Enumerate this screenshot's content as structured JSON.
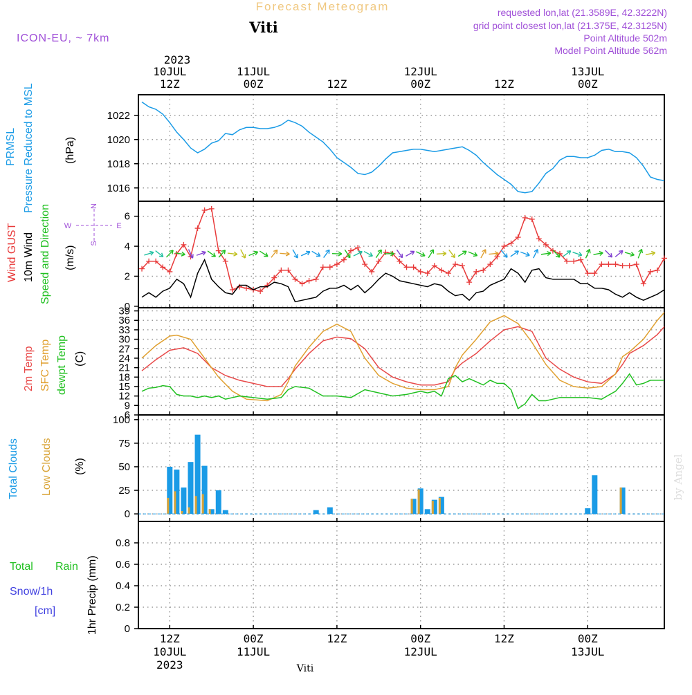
{
  "header": {
    "title": "Forecast Meteogram",
    "location": "Viti",
    "model": "ICON-EU, ~ 7km",
    "requested": "requested lon,lat (21.3589E, 42.3222N)",
    "grid_point": "grid point closest lon,lat (21.375E, 42.3125N)",
    "point_altitude": "Point Altitude 502m",
    "model_altitude": "Model Point Altitude 562m",
    "credit": "by Angel",
    "footer_location": "Viti"
  },
  "time_axis": {
    "top_year": "2023",
    "ticks": [
      {
        "hour": 12,
        "top": [
          "10JUL",
          "12Z"
        ],
        "bottom": [
          "12Z",
          "10JUL",
          "2023"
        ]
      },
      {
        "hour": 24,
        "top": [
          "11JUL",
          "00Z"
        ],
        "bottom": [
          "00Z",
          "11JUL"
        ]
      },
      {
        "hour": 36,
        "top": [
          "12Z"
        ],
        "bottom": [
          "12Z"
        ]
      },
      {
        "hour": 48,
        "top": [
          "12JUL",
          "00Z"
        ],
        "bottom": [
          "00Z",
          "12JUL"
        ]
      },
      {
        "hour": 60,
        "top": [
          "12Z"
        ],
        "bottom": [
          "12Z"
        ]
      },
      {
        "hour": 72,
        "top": [
          "13JUL",
          "00Z"
        ],
        "bottom": [
          "00Z",
          "13JUL"
        ]
      }
    ],
    "x_range_hours": [
      7.5,
      83
    ]
  },
  "panel_labels": {
    "prmsl": [
      "PRMSL",
      "Pressure Reduced to MSL",
      "(hPa)"
    ],
    "wind": [
      "Wind GUST",
      "10m Wind",
      "Speed and Direction",
      "(m/s)"
    ],
    "compass": {
      "n": "N",
      "s": "S",
      "w": "W",
      "e": "E"
    },
    "temp": [
      "2m Temp",
      "SFC Temp",
      "dewpt Temp",
      "(C)"
    ],
    "clouds": [
      "Total Clouds",
      "Low Clouds",
      "(%)"
    ],
    "precip": [
      "Total",
      "Rain",
      "Snow/1h",
      "[cm]",
      "1hr Precip (mm)"
    ]
  },
  "colors": {
    "pressure": "#1a9be6",
    "gust": "#e83a3a",
    "wind": "#000000",
    "t2m": "#e84848",
    "sfc": "#e0a030",
    "dewpt": "#20c020",
    "total_clouds": "#1a9be6",
    "low_clouds": "#d9a437",
    "label_purple": "#a050d8",
    "label_orange": "#f0c880",
    "rain_green": "#20c020",
    "snow_blue": "#4040e0"
  },
  "chart_data": [
    {
      "type": "line",
      "title": "PRMSL",
      "ylabel": "(hPa)",
      "ylim": [
        1014.9,
        1023.7
      ],
      "yticks": [
        1016,
        1018,
        1020,
        1022
      ],
      "series": [
        {
          "name": "PRMSL",
          "x": [
            8,
            8.5,
            9,
            10,
            11,
            12,
            13,
            14,
            15,
            16,
            17,
            18,
            19,
            20,
            21,
            22,
            23,
            24,
            25,
            26,
            27,
            28,
            29,
            30,
            31,
            32,
            33,
            34,
            35,
            36,
            37,
            38,
            39,
            40,
            41,
            42,
            43,
            44,
            45,
            46,
            47,
            48,
            49,
            50,
            51,
            52,
            53,
            54,
            55,
            56,
            57,
            58,
            59,
            60,
            61,
            62,
            63,
            64,
            65,
            66,
            67,
            68,
            69,
            70,
            71,
            72,
            73,
            74,
            75,
            76,
            77,
            78,
            79,
            80,
            81,
            82,
            83
          ],
          "y": [
            1023.1,
            1022.9,
            1022.7,
            1022.5,
            1022.1,
            1021.4,
            1020.6,
            1020.0,
            1019.3,
            1018.9,
            1019.2,
            1019.7,
            1019.9,
            1020.5,
            1020.4,
            1020.8,
            1021.0,
            1021.0,
            1020.9,
            1020.9,
            1021.0,
            1021.2,
            1021.6,
            1021.4,
            1021.1,
            1020.6,
            1020.2,
            1019.8,
            1019.2,
            1018.5,
            1018.1,
            1017.7,
            1017.2,
            1017.1,
            1017.3,
            1017.8,
            1018.4,
            1018.9,
            1019.0,
            1019.1,
            1019.2,
            1019.2,
            1019.1,
            1019.0,
            1019.1,
            1019.2,
            1019.3,
            1019.4,
            1019.1,
            1018.7,
            1018.1,
            1017.6,
            1017.1,
            1016.7,
            1016.3,
            1015.7,
            1015.6,
            1015.7,
            1016.4,
            1017.2,
            1017.6,
            1018.3,
            1018.6,
            1018.6,
            1018.5,
            1018.5,
            1018.7,
            1019.1,
            1019.2,
            1019.0,
            1019.0,
            1018.9,
            1018.5,
            1017.8,
            1016.9,
            1016.7,
            1016.6
          ]
        }
      ]
    },
    {
      "type": "line",
      "title": "Wind GUST / 10m Wind Speed and Direction",
      "ylabel": "(m/s)",
      "ylim": [
        -0.1,
        7.0
      ],
      "yticks": [
        0,
        2,
        4,
        6
      ],
      "series": [
        {
          "name": "Wind GUST",
          "x": [
            8,
            9,
            10,
            11,
            12,
            13,
            14,
            15,
            16,
            17,
            18,
            19,
            20,
            21,
            22,
            23,
            24,
            25,
            26,
            27,
            28,
            29,
            30,
            31,
            32,
            33,
            34,
            35,
            36,
            37,
            38,
            39,
            40,
            41,
            42,
            43,
            44,
            45,
            46,
            47,
            48,
            49,
            50,
            51,
            52,
            53,
            54,
            55,
            56,
            57,
            58,
            59,
            60,
            61,
            62,
            63,
            64,
            65,
            66,
            67,
            68,
            69,
            70,
            71,
            72,
            73,
            74,
            75,
            76,
            77,
            78,
            79,
            80,
            81,
            82,
            83
          ],
          "y": [
            2.5,
            3.0,
            3.0,
            2.6,
            2.3,
            3.5,
            4.1,
            3.3,
            5.2,
            6.4,
            6.5,
            3.7,
            3.0,
            1.1,
            1.3,
            1.2,
            1.1,
            1.0,
            1.4,
            1.9,
            2.4,
            2.4,
            1.8,
            1.5,
            1.7,
            1.8,
            2.6,
            2.6,
            2.8,
            3.1,
            3.7,
            3.9,
            2.8,
            2.3,
            3.0,
            3.6,
            3.5,
            3.0,
            2.6,
            2.6,
            2.3,
            2.2,
            2.7,
            2.4,
            2.2,
            2.8,
            2.7,
            1.6,
            2.3,
            2.4,
            2.8,
            3.3,
            4.0,
            4.2,
            4.6,
            5.9,
            5.8,
            4.5,
            4.1,
            3.7,
            3.5,
            3.0,
            3.0,
            3.1,
            2.2,
            2.2,
            2.8,
            2.8,
            2.8,
            2.7,
            2.7,
            2.8,
            1.5,
            2.3,
            2.4,
            3.2
          ]
        },
        {
          "name": "10m Wind",
          "x": [
            8,
            9,
            10,
            11,
            12,
            13,
            14,
            15,
            16,
            17,
            18,
            19,
            20,
            21,
            22,
            23,
            24,
            25,
            26,
            27,
            28,
            29,
            30,
            31,
            32,
            33,
            34,
            35,
            36,
            37,
            38,
            39,
            40,
            41,
            42,
            43,
            44,
            45,
            46,
            47,
            48,
            49,
            50,
            51,
            52,
            53,
            54,
            55,
            56,
            57,
            58,
            59,
            60,
            61,
            62,
            63,
            64,
            65,
            66,
            67,
            68,
            69,
            70,
            71,
            72,
            73,
            74,
            75,
            76,
            77,
            78,
            79,
            80,
            81,
            82,
            83
          ],
          "y": [
            0.6,
            0.9,
            0.6,
            1.0,
            1.2,
            1.8,
            1.5,
            0.6,
            2.2,
            3.1,
            1.8,
            1.3,
            0.9,
            0.8,
            1.4,
            1.4,
            1.1,
            1.3,
            1.3,
            1.6,
            1.5,
            1.3,
            0.3,
            0.4,
            0.5,
            0.6,
            1.0,
            1.2,
            1.2,
            1.4,
            1.1,
            1.4,
            0.9,
            1.3,
            1.8,
            2.2,
            2.0,
            1.7,
            1.6,
            1.5,
            1.4,
            1.3,
            1.5,
            1.4,
            1.0,
            0.7,
            0.8,
            0.4,
            0.9,
            1.0,
            1.4,
            1.6,
            1.8,
            2.5,
            2.2,
            1.6,
            2.4,
            2.5,
            1.9,
            1.8,
            1.8,
            1.8,
            1.8,
            1.5,
            1.5,
            1.2,
            1.2,
            1.1,
            0.8,
            0.6,
            0.9,
            0.6,
            0.4,
            0.6,
            0.8,
            1.1
          ]
        }
      ]
    },
    {
      "type": "line",
      "title": "2m Temp / SFC Temp / dewpt Temp",
      "ylabel": "(C)",
      "ylim": [
        6,
        40
      ],
      "yticks": [
        6,
        9,
        12,
        15,
        18,
        21,
        24,
        27,
        30,
        33,
        36,
        39
      ],
      "series": [
        {
          "name": "2m Temp",
          "x": [
            8,
            10,
            12,
            14,
            16,
            18,
            20,
            22,
            24,
            26,
            28,
            29,
            30,
            32,
            34,
            36,
            38,
            40,
            42,
            44,
            46,
            48,
            50,
            52,
            53,
            54,
            56,
            58,
            60,
            62,
            64,
            66,
            68,
            70,
            72,
            74,
            76,
            77,
            78,
            80,
            82,
            83
          ],
          "y": [
            20.0,
            23.5,
            26.5,
            27.3,
            25.5,
            21.0,
            18.5,
            17.0,
            16.0,
            15.0,
            15.0,
            17.5,
            20.5,
            25.5,
            29.5,
            30.7,
            30.2,
            27.0,
            21.0,
            18.0,
            16.5,
            15.5,
            15.5,
            16.5,
            20.5,
            22.5,
            25.5,
            29.5,
            33.0,
            34.0,
            32.5,
            24.0,
            20.5,
            18.0,
            16.5,
            16.0,
            19.0,
            22.0,
            25.5,
            28.0,
            31.5,
            34.0
          ]
        },
        {
          "name": "SFC Temp",
          "x": [
            8,
            10,
            12,
            13,
            15,
            17,
            19,
            21,
            23,
            26,
            28,
            29,
            30,
            32,
            34,
            36,
            38,
            40,
            42,
            44,
            46,
            48,
            50,
            52,
            53,
            54,
            56,
            58,
            60,
            62,
            64,
            66,
            68,
            70,
            72,
            74,
            76,
            77,
            78,
            80,
            82,
            83
          ],
          "y": [
            24.0,
            28.0,
            31.0,
            31.3,
            30.0,
            24.0,
            18.0,
            13.5,
            11.0,
            10.5,
            12.5,
            16.5,
            21.5,
            27.5,
            32.5,
            34.8,
            32.5,
            24.0,
            18.5,
            16.0,
            14.5,
            14.0,
            14.0,
            15.0,
            21.0,
            25.0,
            30.0,
            35.5,
            37.5,
            35.0,
            29.0,
            22.0,
            17.0,
            15.0,
            14.5,
            15.0,
            19.0,
            24.5,
            26.0,
            30.0,
            36.0,
            38.5
          ]
        },
        {
          "name": "dewpt Temp",
          "x": [
            8,
            9,
            10,
            11,
            12,
            13,
            14,
            15,
            16,
            17,
            18,
            19,
            20,
            22,
            24,
            26,
            28,
            29,
            30,
            32,
            34,
            36,
            38,
            40,
            42,
            44,
            46,
            48,
            49,
            50,
            51,
            52,
            53,
            54,
            55,
            56,
            57,
            58,
            59,
            60,
            61,
            62,
            63,
            64,
            65,
            66,
            67,
            68,
            70,
            72,
            74,
            76,
            77,
            78,
            79,
            80,
            81,
            82,
            83
          ],
          "y": [
            13.5,
            14.5,
            14.7,
            15.3,
            15.0,
            12.5,
            12.0,
            12.0,
            11.5,
            12.0,
            11.5,
            12.0,
            11.0,
            12.0,
            11.5,
            11.0,
            11.5,
            14.0,
            15.0,
            14.5,
            12.0,
            12.0,
            11.5,
            14.0,
            13.0,
            12.0,
            12.5,
            13.5,
            13.0,
            13.5,
            12.0,
            17.5,
            18.5,
            16.5,
            17.5,
            16.5,
            15.5,
            17.0,
            16.0,
            16.0,
            14.0,
            8.0,
            9.5,
            12.5,
            10.5,
            10.5,
            11.0,
            11.5,
            11.5,
            11.5,
            11.0,
            13.5,
            16.0,
            19.0,
            15.5,
            16.0,
            17.0,
            17.0,
            17.0
          ]
        }
      ]
    },
    {
      "type": "bar",
      "title": "Total Clouds / Low Clouds",
      "ylabel": "(%)",
      "ylim": [
        -8,
        105
      ],
      "yticks": [
        0,
        25,
        50,
        75,
        100
      ],
      "series": [
        {
          "name": "Total Clouds",
          "x": [
            12,
            13,
            14,
            15,
            16,
            17,
            18,
            19,
            20,
            33,
            35,
            47,
            48,
            49,
            50,
            51,
            72,
            73,
            77
          ],
          "y": [
            50,
            47,
            28,
            55,
            84,
            51,
            5,
            25,
            4,
            4,
            7,
            16,
            27,
            5,
            15,
            18,
            6,
            41,
            28
          ]
        },
        {
          "name": "Low Clouds",
          "x": [
            12,
            13,
            14,
            15,
            16,
            17,
            18,
            19,
            20,
            33,
            35,
            47,
            48,
            49,
            50,
            51,
            72,
            73,
            77
          ],
          "y": [
            17,
            24,
            3,
            7,
            19,
            21,
            5,
            0,
            0,
            0,
            0,
            16,
            26,
            0,
            14,
            17,
            0,
            0,
            28
          ]
        }
      ]
    },
    {
      "type": "bar",
      "title": "1hr Precip",
      "ylabel": "1hr Precip (mm)",
      "ylim": [
        0,
        1.0
      ],
      "yticks": [
        0,
        0.2,
        0.4,
        0.6,
        0.8
      ],
      "series": [
        {
          "name": "Total Rain",
          "x": [],
          "y": []
        }
      ]
    }
  ]
}
